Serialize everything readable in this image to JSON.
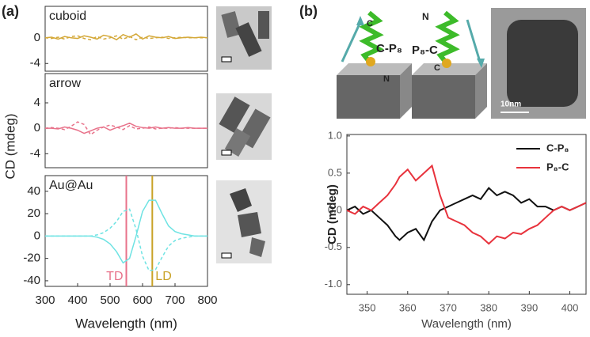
{
  "figure": {
    "panel_labels": [
      "(a)",
      "(b)"
    ],
    "diagram_labels": [
      "C",
      "C-P₈",
      "N",
      "N",
      "P₈-C",
      "C",
      "10nm"
    ]
  },
  "chart_data": [
    {
      "type": "line",
      "annotation": "cuboid",
      "xlim": [
        300,
        800
      ],
      "ylim": [
        -5.2,
        4.9
      ],
      "yticks": [
        0,
        -4
      ],
      "x": [
        300,
        320,
        340,
        360,
        380,
        400,
        420,
        440,
        460,
        480,
        500,
        520,
        540,
        560,
        580,
        600,
        620,
        640,
        660,
        680,
        700,
        720,
        740,
        760,
        780,
        800
      ],
      "series": [
        {
          "color": "#d4a838",
          "dash": false,
          "values": [
            0,
            0.1,
            -0.2,
            0.2,
            0,
            -0.1,
            0.3,
            0.1,
            -0.2,
            0.4,
            0.2,
            -0.3,
            0.5,
            0.1,
            0.6,
            -0.2,
            0.3,
            0.1,
            0,
            0.2,
            -0.1,
            0,
            0.1,
            0,
            0.1,
            0
          ]
        },
        {
          "color": "#d4a838",
          "dash": true,
          "values": [
            0,
            -0.1,
            0.1,
            -0.2,
            0.2,
            0.3,
            -0.1,
            -0.3,
            0.2,
            -0.2,
            0,
            0.3,
            -0.2,
            0.2,
            -0.3,
            0.1,
            -0.1,
            0,
            0.1,
            -0.1,
            0,
            0.1,
            0,
            0,
            0,
            0
          ]
        }
      ]
    },
    {
      "type": "line",
      "annotation": "arrow",
      "ylabel": "CD (mdeg)",
      "xlim": [
        300,
        800
      ],
      "ylim": [
        -6.2,
        8.6
      ],
      "yticks": [
        4,
        0,
        -4
      ],
      "x": [
        300,
        320,
        340,
        360,
        380,
        400,
        420,
        440,
        460,
        480,
        500,
        520,
        540,
        560,
        580,
        600,
        620,
        640,
        660,
        680,
        700,
        720,
        740,
        760,
        780,
        800
      ],
      "series": [
        {
          "color": "#e8728a",
          "dash": false,
          "values": [
            0,
            0,
            -0.1,
            0.2,
            0,
            -0.3,
            -0.8,
            -0.4,
            0,
            0.2,
            -0.3,
            0.1,
            0.4,
            0.8,
            0.3,
            0.1,
            0,
            0.2,
            0,
            0.1,
            0,
            0,
            0.1,
            0,
            0,
            0
          ]
        },
        {
          "color": "#e8728a",
          "dash": true,
          "values": [
            0,
            0.1,
            0,
            -0.2,
            0.3,
            1.0,
            0.6,
            -1.0,
            -0.3,
            0.2,
            0.5,
            0.2,
            -0.2,
            0.4,
            -0.1,
            0,
            0.2,
            -0.1,
            0,
            0,
            0.1,
            0,
            0,
            0,
            0,
            0
          ]
        }
      ]
    },
    {
      "type": "line",
      "annotation": "Au@Au",
      "xlabel": "Wavelength (nm)",
      "xlim": [
        300,
        800
      ],
      "ylim": [
        -45,
        54
      ],
      "yticks": [
        40,
        20,
        0,
        -20,
        -40
      ],
      "xticks": [
        300,
        400,
        500,
        600,
        700,
        800
      ],
      "x": [
        300,
        320,
        340,
        360,
        380,
        400,
        420,
        440,
        460,
        480,
        500,
        520,
        540,
        560,
        580,
        600,
        620,
        640,
        660,
        680,
        700,
        720,
        740,
        760,
        780,
        800
      ],
      "series": [
        {
          "color": "#6fe3e3",
          "dash": false,
          "values": [
            0,
            0,
            0,
            0,
            0,
            0,
            0,
            0,
            -1,
            -3,
            -7,
            -14,
            -24,
            -20,
            0,
            22,
            32,
            32,
            20,
            9,
            4,
            2,
            1,
            0,
            0,
            0
          ]
        },
        {
          "color": "#6fe3e3",
          "dash": true,
          "values": [
            0,
            0,
            0,
            0,
            0,
            0,
            0,
            0,
            1,
            3,
            7,
            13,
            22,
            24,
            6,
            -18,
            -31,
            -30,
            -19,
            -9,
            -4,
            -2,
            -1,
            0,
            0,
            0
          ]
        }
      ],
      "markers": [
        {
          "x": 550,
          "label": "TD",
          "color": "#e8728a"
        },
        {
          "x": 630,
          "label": "LD",
          "color": "#c9a227"
        }
      ]
    },
    {
      "type": "line",
      "xlabel": "Wavelength (nm)",
      "ylabel": "CD (mdeg)",
      "xlim": [
        345,
        404
      ],
      "ylim": [
        -1.13,
        1.02
      ],
      "yticks": [
        {
          "value": 1.0,
          "label": "1.0"
        },
        0.5,
        {
          "value": 0.0,
          "label": "0.0"
        },
        -0.5,
        {
          "value": -1.0,
          "label": "-1.0"
        }
      ],
      "xticks": [
        350,
        360,
        370,
        380,
        390,
        400
      ],
      "x": [
        345,
        347,
        349,
        351,
        353,
        355,
        357,
        358,
        360,
        362,
        364,
        366,
        368,
        370,
        372,
        374,
        376,
        378,
        380,
        382,
        384,
        386,
        388,
        390,
        392,
        394,
        396,
        398,
        400,
        402,
        404
      ],
      "series": [
        {
          "name": "C-P₈",
          "color": "#111111",
          "values": [
            0,
            0.05,
            -0.05,
            0,
            -0.1,
            -0.2,
            -0.35,
            -0.4,
            -0.3,
            -0.25,
            -0.4,
            -0.15,
            0,
            0.05,
            0.1,
            0.15,
            0.2,
            0.15,
            0.3,
            0.2,
            0.25,
            0.2,
            0.1,
            0.15,
            0.05,
            0.05,
            0,
            0.05,
            0,
            0.05,
            0.1
          ]
        },
        {
          "name": "P₈-C",
          "color": "#e8323c",
          "values": [
            0,
            -0.05,
            0.05,
            0,
            0.1,
            0.2,
            0.35,
            0.45,
            0.55,
            0.4,
            0.5,
            0.6,
            0.2,
            -0.1,
            -0.15,
            -0.2,
            -0.3,
            -0.35,
            -0.45,
            -0.35,
            -0.38,
            -0.3,
            -0.32,
            -0.25,
            -0.2,
            -0.1,
            0,
            0.05,
            0,
            0.05,
            0.1
          ]
        }
      ]
    }
  ]
}
